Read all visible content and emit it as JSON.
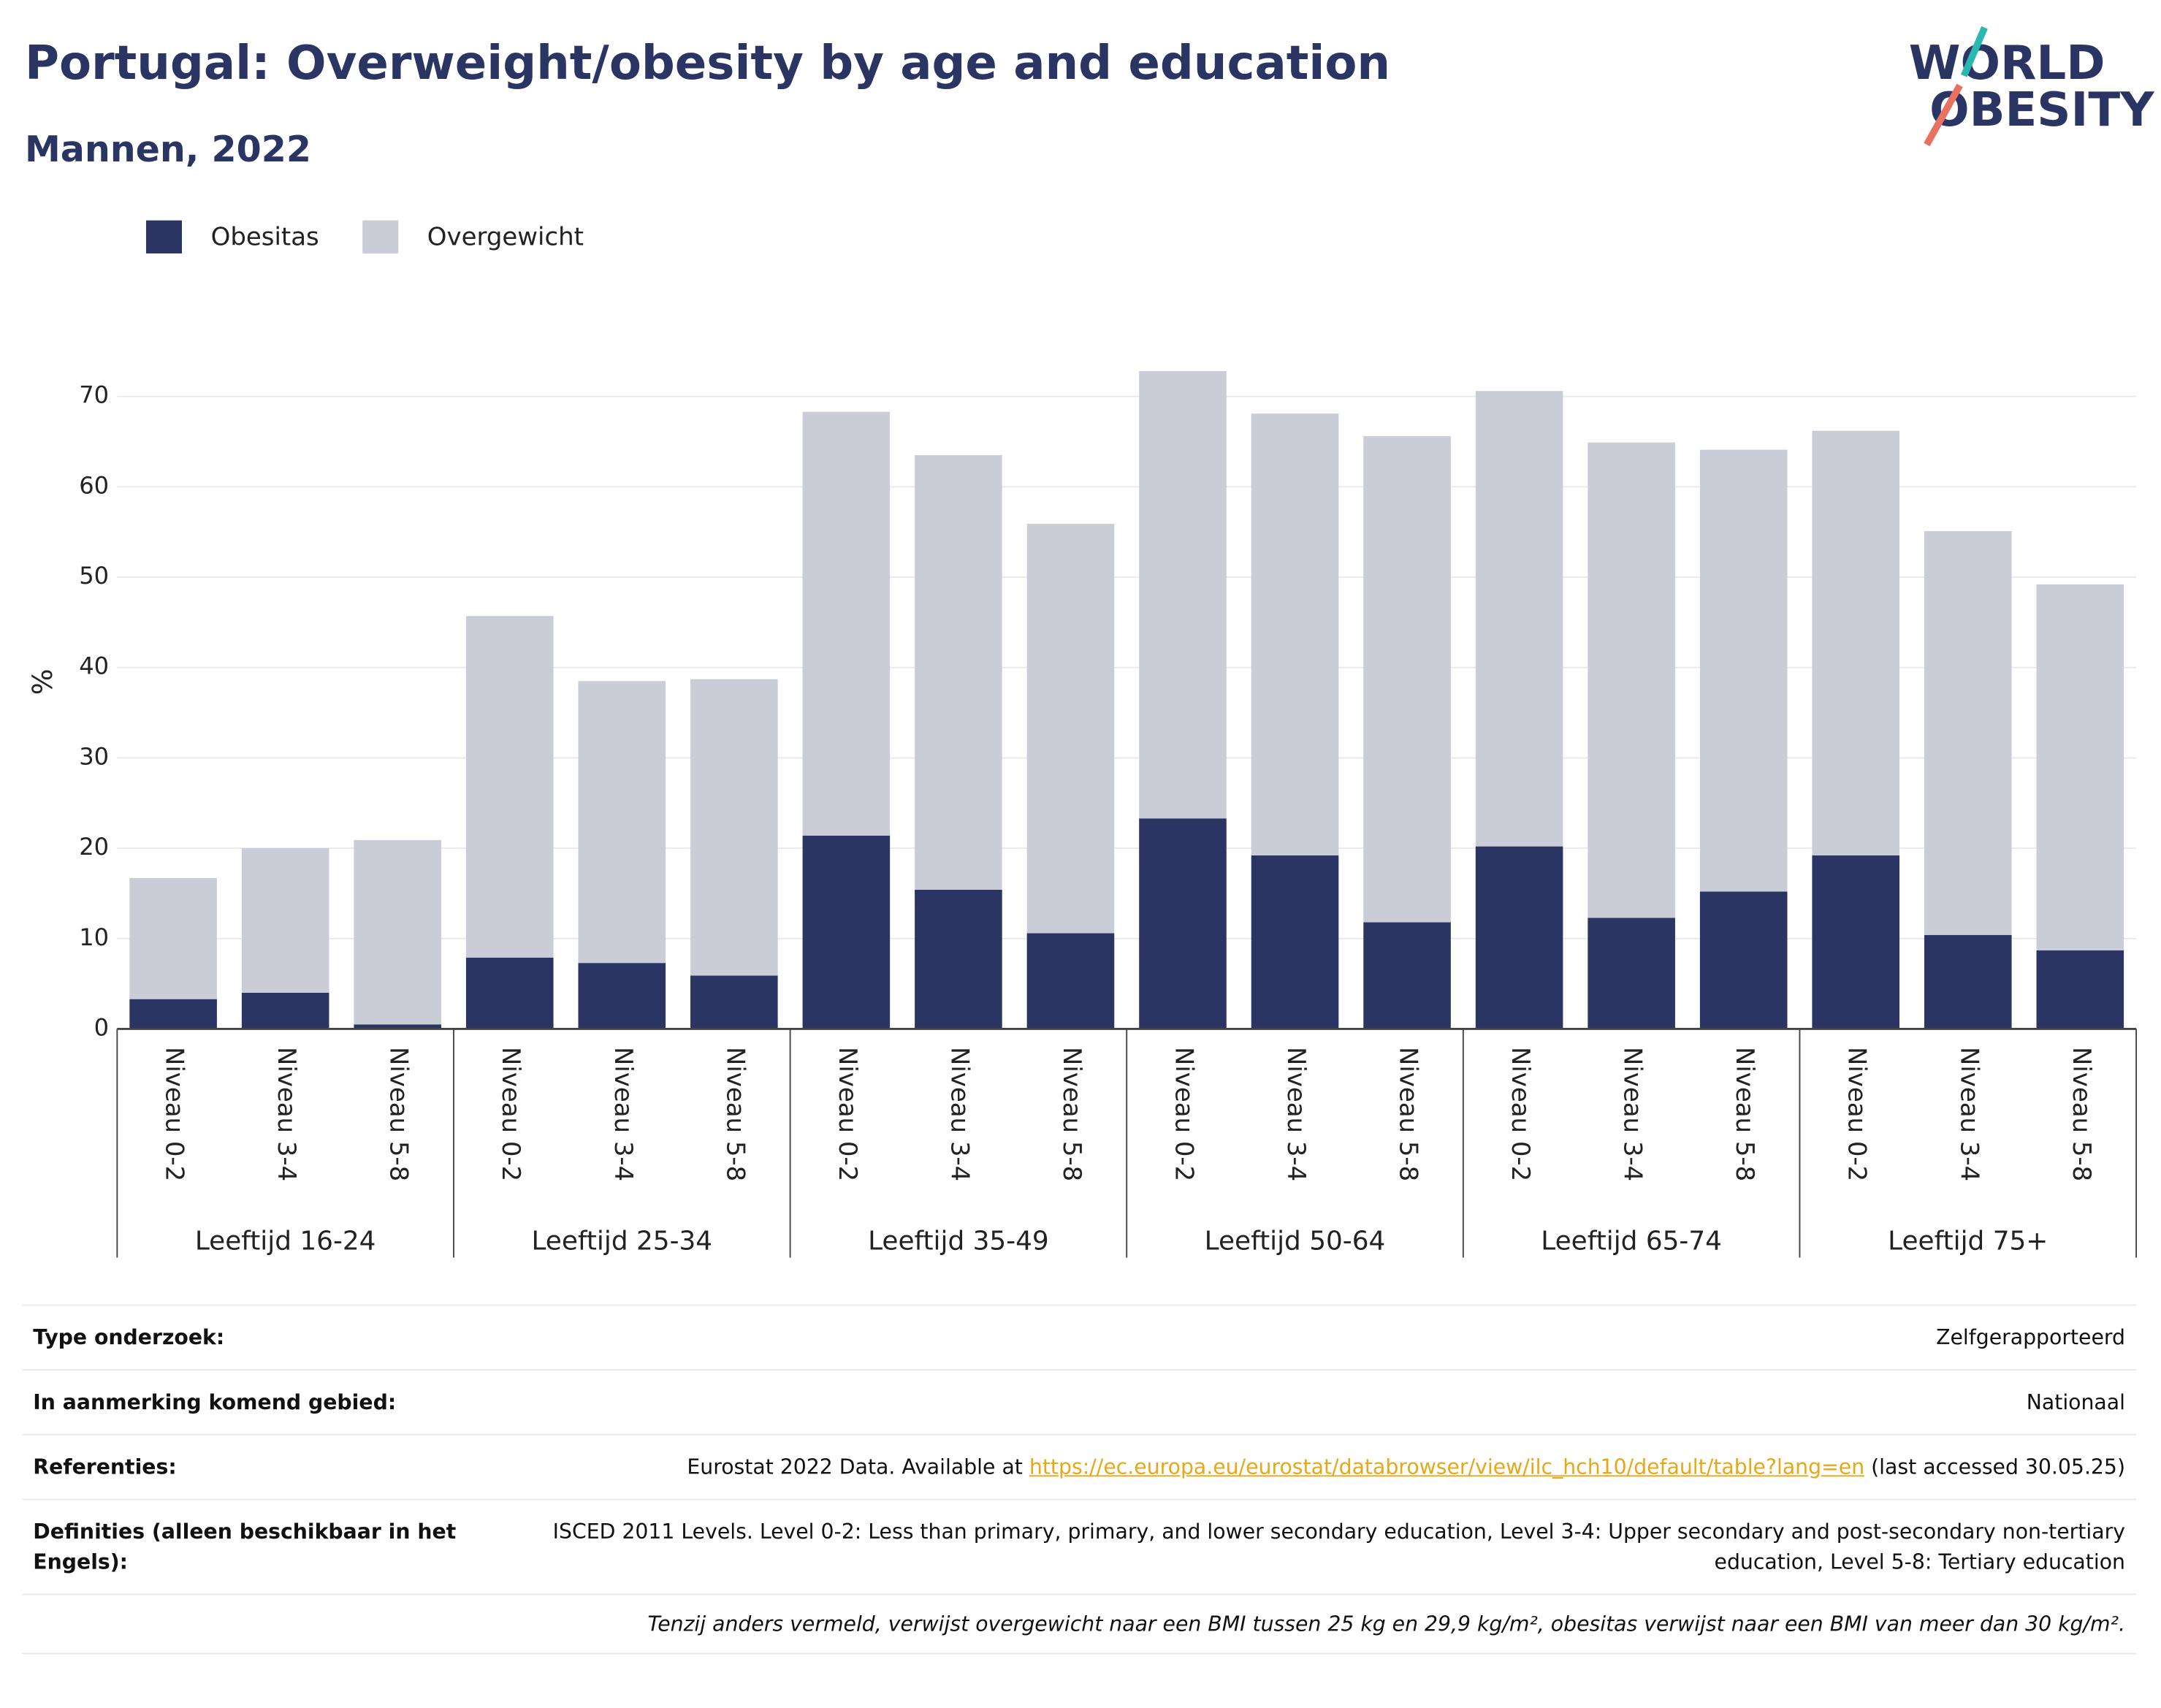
{
  "header": {
    "logo": [
      "WORLD",
      "OBESITY"
    ]
  },
  "chart_data": {
    "type": "stacked_bar",
    "title": "Portugal: Overweight/obesity by age and education",
    "subtitle": "Mannen, 2022",
    "y_label": "%",
    "groups": [
      "Leeftijd 16-24",
      "Leeftijd 25-34",
      "Leeftijd 35-49",
      "Leeftijd 50-64",
      "Leeftijd 65-74",
      "Leeftijd 75+"
    ],
    "categories": [
      "Niveau 0-2",
      "Niveau 3-4",
      "Niveau 5-8",
      "Niveau 0-2",
      "Niveau 3-4",
      "Niveau 5-8",
      "Niveau 0-2",
      "Niveau 3-4",
      "Niveau 5-8",
      "Niveau 0-2",
      "Niveau 3-4",
      "Niveau 5-8",
      "Niveau 0-2",
      "Niveau 3-4",
      "Niveau 5-8",
      "Niveau 0-2",
      "Niveau 3-4",
      "Niveau 5-8"
    ],
    "series": [
      {
        "name": "Obesitas",
        "color": "#2a3563",
        "values": [
          3.3,
          4.0,
          0.5,
          7.9,
          7.3,
          5.9,
          21.4,
          15.4,
          10.6,
          23.3,
          19.2,
          11.8,
          20.2,
          12.3,
          15.2,
          19.2,
          10.4,
          8.7
        ]
      },
      {
        "name": "Overgewicht",
        "color": "#caccd8",
        "values": [
          13.4,
          16.0,
          20.4,
          37.8,
          31.2,
          32.8,
          46.9,
          48.1,
          45.3,
          49.5,
          48.9,
          53.8,
          50.4,
          52.6,
          48.9,
          47.0,
          44.7,
          40.5
        ]
      }
    ],
    "ylim": [
      0,
      75
    ],
    "yticks": [
      0,
      10,
      20,
      30,
      40,
      50,
      60,
      70
    ],
    "grid": true,
    "legend": "top-left"
  },
  "table": {
    "rows": [
      [
        "Type onderzoek:",
        "Zelfgerapporteerd"
      ],
      [
        "In aanmerking komend gebied:",
        "Nationaal"
      ],
      [
        "Referenties:",
        "Eurostat 2022 Data. Available at ",
        "https://ec.europa.eu/eurostat/databrowser/view/ilc_hch10/default/table?lang=en",
        " (last accessed 30.05.25)"
      ],
      [
        "Definities (alleen beschikbaar in het Engels):",
        "ISCED 2011 Levels. Level 0-2: Less than primary, primary, and lower secondary education, Level 3-4: Upper secondary and post-secondary non-tertiary education, Level 5-8: Tertiary education"
      ]
    ],
    "note": "Tenzij anders vermeld, verwijst overgewicht naar een BMI tussen 25 kg en 29,9 kg/m², obesitas verwijst naar een BMI van meer dan 30 kg/m²."
  }
}
